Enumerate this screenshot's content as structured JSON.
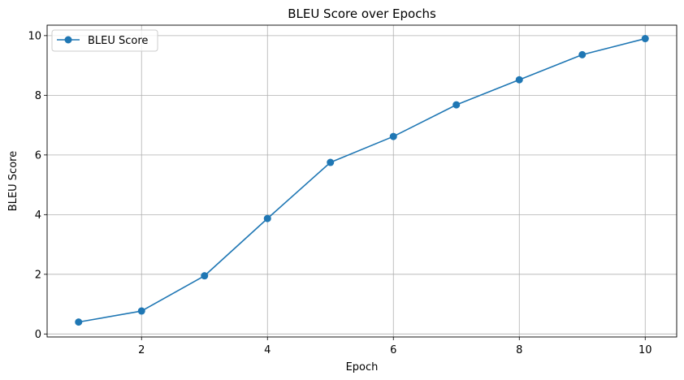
{
  "chart_data": {
    "type": "line",
    "title": "BLEU Score over Epochs",
    "xlabel": "Epoch",
    "ylabel": "BLEU Score",
    "xlim": [
      0.5,
      10.5
    ],
    "ylim": [
      -0.1,
      10.35
    ],
    "x_ticks": [
      2,
      4,
      6,
      8,
      10
    ],
    "y_ticks": [
      0,
      2,
      4,
      6,
      8,
      10
    ],
    "grid": true,
    "legend_position": "top-left",
    "series": [
      {
        "name": "BLEU Score",
        "color": "#1f77b4",
        "marker": "circle",
        "x": [
          1,
          2,
          3,
          4,
          5,
          6,
          7,
          8,
          9,
          10
        ],
        "values": [
          0.4,
          0.77,
          1.95,
          3.87,
          5.75,
          6.62,
          7.68,
          8.52,
          9.36,
          9.9
        ]
      }
    ]
  }
}
